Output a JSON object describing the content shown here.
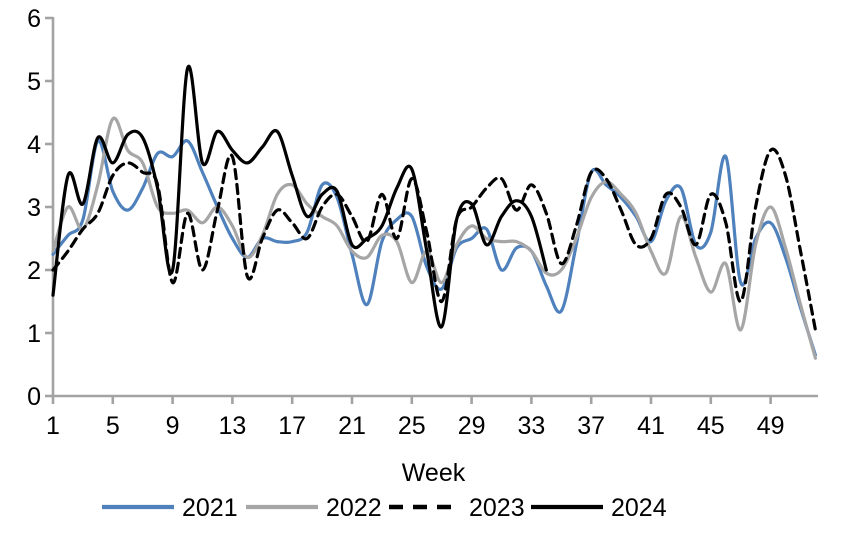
{
  "chart_data": {
    "type": "line",
    "title": "",
    "xlabel": "Week",
    "ylabel": "",
    "xlim": [
      1,
      52
    ],
    "ylim": [
      0,
      6
    ],
    "grid": false,
    "legend_position": "bottom",
    "axis_color": "#a3a3a3",
    "text_color": "#000000",
    "x_ticks": [
      1,
      5,
      9,
      13,
      17,
      21,
      25,
      29,
      33,
      37,
      41,
      45,
      49
    ],
    "y_ticks": [
      0,
      1,
      2,
      3,
      4,
      5,
      6
    ],
    "x_start_week": 1,
    "series": [
      {
        "name": "2021",
        "color": "#4f81bd",
        "style": "solid",
        "values": [
          2.25,
          2.55,
          2.8,
          4.05,
          3.25,
          2.95,
          3.3,
          3.85,
          3.8,
          4.05,
          3.55,
          3.0,
          2.5,
          2.2,
          2.5,
          2.45,
          2.45,
          2.6,
          3.35,
          3.15,
          2.25,
          1.45,
          2.45,
          2.8,
          2.85,
          2.05,
          1.7,
          2.35,
          2.5,
          2.65,
          2.0,
          2.35,
          2.3,
          1.75,
          1.35,
          2.4,
          3.55,
          3.35,
          3.15,
          2.85,
          2.45,
          3.1,
          3.3,
          2.4,
          2.6,
          3.8,
          1.8,
          2.5,
          2.75,
          2.2,
          1.4,
          0.65
        ]
      },
      {
        "name": "2022",
        "color": "#a6a6a6",
        "style": "solid",
        "values": [
          2.3,
          3.0,
          2.65,
          3.35,
          4.4,
          3.9,
          3.7,
          3.0,
          2.9,
          2.95,
          2.75,
          3.0,
          2.7,
          2.2,
          2.55,
          3.2,
          3.35,
          3.05,
          2.85,
          2.7,
          2.3,
          2.2,
          2.55,
          2.45,
          1.8,
          2.3,
          1.8,
          2.4,
          2.7,
          2.5,
          2.45,
          2.45,
          2.3,
          1.95,
          2.0,
          2.5,
          3.15,
          3.4,
          3.2,
          2.9,
          2.3,
          1.95,
          2.85,
          2.2,
          1.65,
          2.1,
          1.05,
          2.4,
          3.0,
          2.35,
          1.45,
          0.6
        ]
      },
      {
        "name": "2023",
        "color": "#000000",
        "style": "dashed",
        "values": [
          2.0,
          2.3,
          2.65,
          2.9,
          3.5,
          3.7,
          3.55,
          3.35,
          1.8,
          2.9,
          2.0,
          2.95,
          3.8,
          1.9,
          2.5,
          2.95,
          2.75,
          2.5,
          3.0,
          3.2,
          2.85,
          2.45,
          3.2,
          2.5,
          3.45,
          2.6,
          1.5,
          2.8,
          3.0,
          3.3,
          3.45,
          2.95,
          3.35,
          2.9,
          2.1,
          2.7,
          3.55,
          3.45,
          2.95,
          2.4,
          2.5,
          3.2,
          3.0,
          2.4,
          3.2,
          2.75,
          1.5,
          3.0,
          3.9,
          3.5,
          2.3,
          1.05
        ]
      },
      {
        "name": "2024",
        "color": "#000000",
        "style": "solid",
        "values": [
          1.6,
          3.5,
          3.05,
          4.1,
          3.7,
          4.15,
          4.1,
          3.3,
          2.0,
          5.2,
          3.7,
          4.2,
          3.9,
          3.7,
          3.95,
          4.2,
          3.5,
          2.85,
          3.2,
          3.25,
          2.4,
          2.5,
          2.7,
          3.3,
          3.6,
          2.3,
          1.1,
          2.8,
          3.05,
          2.4,
          2.85,
          3.1,
          2.85,
          2.0
        ]
      }
    ],
    "legend": [
      {
        "label": "2021",
        "color": "#4f81bd",
        "style": "solid"
      },
      {
        "label": "2022",
        "color": "#a6a6a6",
        "style": "solid"
      },
      {
        "label": "2023",
        "color": "#000000",
        "style": "dashed"
      },
      {
        "label": "2024",
        "color": "#000000",
        "style": "solid"
      }
    ]
  }
}
